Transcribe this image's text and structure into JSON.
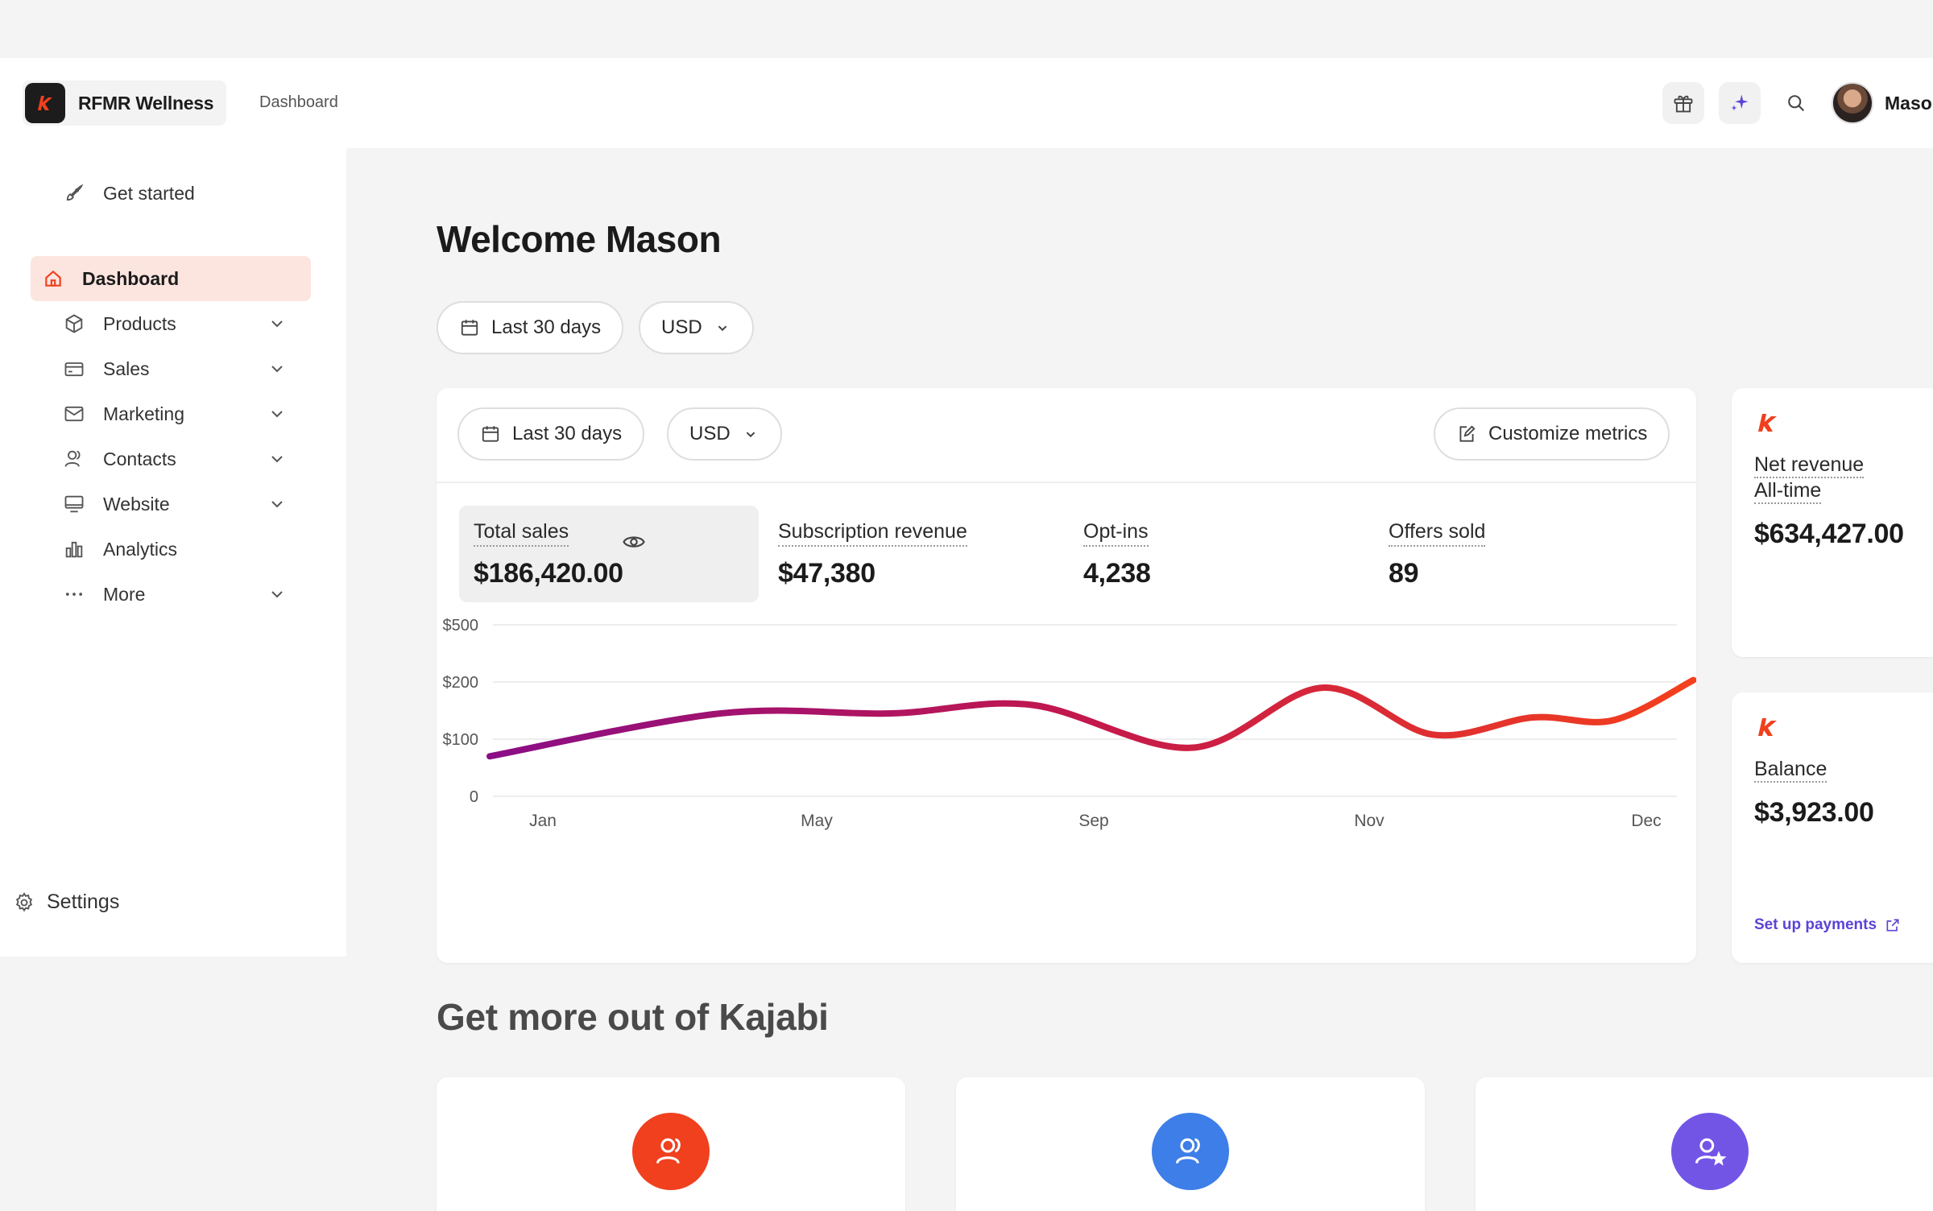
{
  "app": {
    "brand_name": "RFMR Wellness",
    "breadcrumb": "Dashboard",
    "user_name": "Mason"
  },
  "sidebar": {
    "get_started": "Get started",
    "items": [
      {
        "label": "Dashboard",
        "icon": "home-icon",
        "active": true
      },
      {
        "label": "Products",
        "icon": "box-icon"
      },
      {
        "label": "Sales",
        "icon": "credit-card-icon"
      },
      {
        "label": "Marketing",
        "icon": "mail-icon"
      },
      {
        "label": "Contacts",
        "icon": "users-icon"
      },
      {
        "label": "Website",
        "icon": "monitor-icon"
      },
      {
        "label": "Analytics",
        "icon": "bar-chart-icon"
      },
      {
        "label": "More",
        "icon": "dots-icon"
      }
    ],
    "settings": "Settings"
  },
  "main": {
    "welcome": "Welcome Mason",
    "filters": {
      "range": "Last 30 days",
      "currency": "USD"
    },
    "card": {
      "range": "Last 30 days",
      "currency": "USD",
      "customize": "Customize metrics",
      "metrics": [
        {
          "label": "Total sales",
          "value": "$186,420.00"
        },
        {
          "label": "Subscription revenue",
          "value": "$47,380"
        },
        {
          "label": "Opt-ins",
          "value": "4,238"
        },
        {
          "label": "Offers sold",
          "value": "89"
        }
      ]
    },
    "side_cards": {
      "net_revenue": {
        "label1": "Net revenue",
        "label2": "All-time",
        "value": "$634,427.00"
      },
      "balance": {
        "label": "Balance",
        "value": "$3,923.00",
        "link": "Set up payments"
      }
    },
    "section_title": "Get more out of Kajabi",
    "promo_colors": [
      "#f0401e",
      "#3d7ee8",
      "#7355e6"
    ]
  },
  "colors": {
    "accent": "#f0401e",
    "active_bg": "#fde5df",
    "link": "#5b44d6"
  },
  "chart_data": {
    "type": "line",
    "x": [
      "Jan",
      "May",
      "Sep",
      "Nov",
      "Dec"
    ],
    "y_ticks": [
      "$500",
      "$200",
      "$100",
      "0"
    ],
    "series": [
      {
        "values": [
          {
            "month": 1,
            "value": 70
          },
          {
            "month": 3.3,
            "value": 145
          },
          {
            "month": 5,
            "value": 145
          },
          {
            "month": 6.4,
            "value": 160
          },
          {
            "month": 8,
            "value": 85
          },
          {
            "month": 9.3,
            "value": 190
          },
          {
            "month": 10.4,
            "value": 108
          },
          {
            "month": 11.4,
            "value": 138
          },
          {
            "month": 12.2,
            "value": 133
          },
          {
            "month": 13.0,
            "value": 210
          }
        ]
      }
    ]
  }
}
